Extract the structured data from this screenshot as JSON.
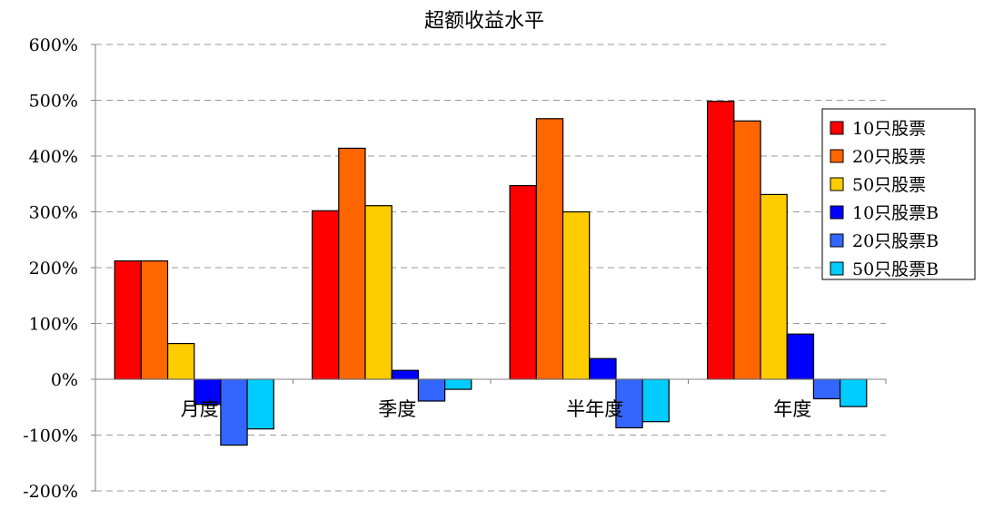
{
  "chart_data": {
    "type": "bar",
    "title": "超额收益水平",
    "categories": [
      "月度",
      "季度",
      "半年度",
      "年度"
    ],
    "y_tick_labels": [
      "600%",
      "500%",
      "400%",
      "300%",
      "200%",
      "100%",
      "0%",
      "-100%",
      "-200%"
    ],
    "ylim": [
      -200,
      600
    ],
    "y_unit": "%",
    "grid": true,
    "legend_position": "right",
    "series": [
      {
        "name": "10只股票",
        "color": "#ff0000",
        "values": [
          212,
          302,
          347,
          498
        ]
      },
      {
        "name": "20只股票",
        "color": "#ff6600",
        "values": [
          212,
          414,
          467,
          463
        ]
      },
      {
        "name": "50只股票",
        "color": "#ffcc00",
        "values": [
          64,
          311,
          300,
          331
        ]
      },
      {
        "name": "10只股票B",
        "color": "#0000ff",
        "values": [
          -45,
          16,
          37,
          81
        ]
      },
      {
        "name": "20只股票B",
        "color": "#3366ff",
        "values": [
          -118,
          -39,
          -87,
          -35
        ]
      },
      {
        "name": "50只股票B",
        "color": "#00ccff",
        "values": [
          -89,
          -18,
          -76,
          -49
        ]
      }
    ]
  }
}
